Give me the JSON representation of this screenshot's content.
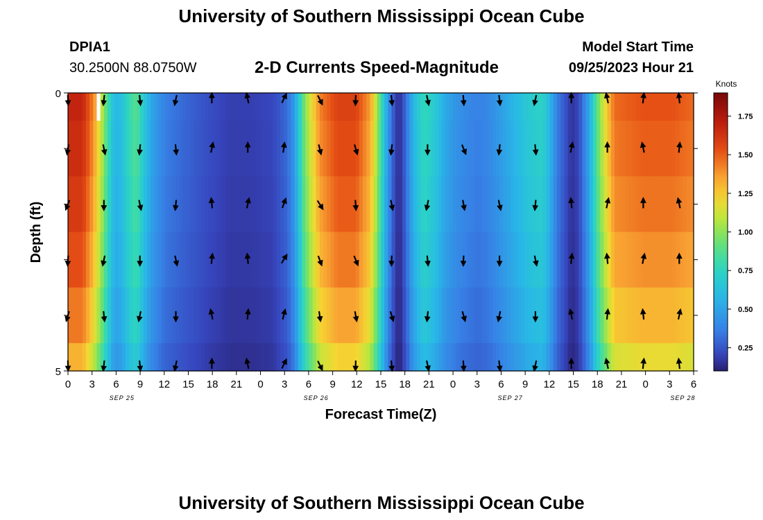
{
  "header": {
    "title": "University of Southern Mississippi Ocean Cube",
    "station_id": "DPIA1",
    "coordinates": "30.2500N  88.0750W",
    "plot_title": "2-D Currents Speed-Magnitude",
    "model_start_label": "Model Start Time",
    "model_start_value": "09/25/2023 Hour 21"
  },
  "footer": {
    "title": "University of Southern Mississippi Ocean Cube"
  },
  "colors": {
    "arrow": "#000000",
    "frame": "#000000"
  },
  "chart_data": {
    "type": "heatmap",
    "title": "2-D Currents Speed-Magnitude",
    "xlabel": "Forecast Time(Z)",
    "ylabel": "Depth (ft)",
    "ylim": [
      0,
      5
    ],
    "y_tick_labels": [
      "0",
      "5"
    ],
    "x_tick_labels": [
      "0",
      "3",
      "6",
      "9",
      "12",
      "15",
      "18",
      "21",
      "0",
      "3",
      "6",
      "9",
      "12",
      "15",
      "18",
      "21",
      "0",
      "3",
      "6",
      "9",
      "12",
      "15",
      "18",
      "21",
      "0",
      "3",
      "6"
    ],
    "date_labels": [
      "SEP 25",
      "SEP 26",
      "SEP 27",
      "SEP 28"
    ],
    "date_label_hours": [
      15,
      69,
      123,
      171
    ],
    "x_range_hours": [
      0,
      174
    ],
    "colorbar": {
      "unit": "Knots",
      "range": [
        0.1,
        1.9
      ],
      "ticks": [
        "0.25",
        "0.50",
        "0.75",
        "1.00",
        "1.25",
        "1.50",
        "1.75"
      ]
    },
    "speed_profile_hours": [
      0,
      4,
      7,
      9,
      11,
      13,
      15,
      17,
      19,
      21,
      23,
      25,
      27,
      33,
      39,
      45,
      51,
      57,
      61,
      63,
      66,
      70,
      75,
      80,
      84,
      86,
      88,
      90,
      92,
      94,
      96,
      99,
      102,
      105,
      108,
      111,
      114,
      117,
      120,
      124,
      128,
      132,
      134,
      136,
      138,
      140,
      142,
      145,
      147,
      150,
      152,
      160,
      168,
      174
    ],
    "speed_profile_knots": [
      1.6,
      1.6,
      1.35,
      1.1,
      0.8,
      0.55,
      0.6,
      0.75,
      0.85,
      0.65,
      0.5,
      0.42,
      0.35,
      0.28,
      0.22,
      0.18,
      0.18,
      0.2,
      0.3,
      0.45,
      0.95,
      1.35,
      1.5,
      1.5,
      1.3,
      1.0,
      0.6,
      0.3,
      0.12,
      0.3,
      0.55,
      0.75,
      0.65,
      0.5,
      0.42,
      0.38,
      0.35,
      0.38,
      0.45,
      0.55,
      0.65,
      0.7,
      0.55,
      0.35,
      0.25,
      0.15,
      0.2,
      0.5,
      0.85,
      1.2,
      1.4,
      1.45,
      1.45,
      1.4
    ],
    "depth_rows_ft": [
      0,
      1,
      2,
      3,
      4,
      5
    ],
    "depth_row_factor": [
      1.05,
      1.03,
      1.0,
      0.96,
      0.9,
      0.82
    ],
    "missing_cell": {
      "hour": 8,
      "depth_ft": 0
    },
    "arrow_hours": [
      0,
      10,
      20,
      30,
      40,
      50,
      60,
      70,
      80,
      90,
      100,
      110,
      120,
      130,
      140,
      150,
      160,
      170
    ],
    "arrow_depths_ft": [
      0,
      1,
      2,
      3,
      4,
      5
    ],
    "arrow_direction_deg_by_column": [
      190,
      180,
      180,
      180,
      0,
      0,
      20,
      160,
      170,
      175,
      180,
      170,
      180,
      180,
      0,
      0,
      0,
      0
    ]
  }
}
